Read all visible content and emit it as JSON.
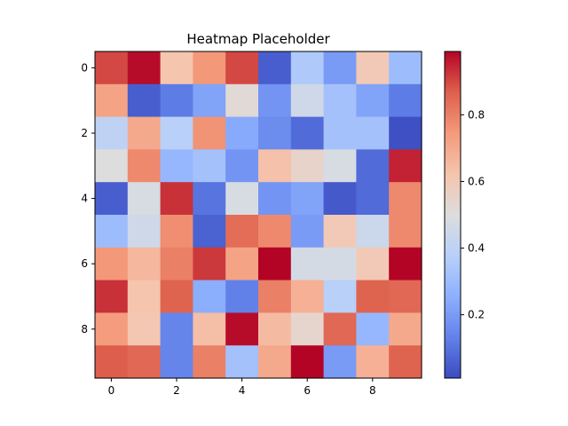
{
  "chart_data": {
    "type": "heatmap",
    "title": "Heatmap Placeholder",
    "xlabel": "",
    "ylabel": "",
    "colormap": "coolwarm",
    "rows": [
      0,
      1,
      2,
      3,
      4,
      5,
      6,
      7,
      8,
      9
    ],
    "cols": [
      0,
      1,
      2,
      3,
      4,
      5,
      6,
      7,
      8,
      9
    ],
    "x_ticks": [
      0,
      2,
      4,
      6,
      8
    ],
    "y_ticks": [
      0,
      2,
      4,
      6,
      8
    ],
    "color_range": [
      0.01,
      0.99
    ],
    "colorbar_ticks": [
      "0.2",
      "0.4",
      "0.6",
      "0.8"
    ],
    "colorbar_tick_values": [
      0.2,
      0.4,
      0.6,
      0.8
    ],
    "values": [
      [
        0.9,
        0.98,
        0.62,
        0.75,
        0.9,
        0.05,
        0.35,
        0.2,
        0.6,
        0.3
      ],
      [
        0.72,
        0.05,
        0.12,
        0.22,
        0.52,
        0.18,
        0.45,
        0.32,
        0.22,
        0.12
      ],
      [
        0.4,
        0.7,
        0.38,
        0.76,
        0.24,
        0.16,
        0.08,
        0.32,
        0.32,
        0.02
      ],
      [
        0.5,
        0.78,
        0.28,
        0.32,
        0.18,
        0.63,
        0.55,
        0.48,
        0.08,
        0.95
      ],
      [
        0.05,
        0.48,
        0.93,
        0.1,
        0.48,
        0.18,
        0.22,
        0.04,
        0.08,
        0.78
      ],
      [
        0.3,
        0.45,
        0.77,
        0.06,
        0.84,
        0.78,
        0.2,
        0.6,
        0.44,
        0.78
      ],
      [
        0.75,
        0.66,
        0.8,
        0.92,
        0.72,
        0.99,
        0.47,
        0.47,
        0.6,
        0.99
      ],
      [
        0.93,
        0.62,
        0.86,
        0.25,
        0.13,
        0.8,
        0.68,
        0.38,
        0.86,
        0.85
      ],
      [
        0.74,
        0.61,
        0.14,
        0.64,
        0.98,
        0.65,
        0.54,
        0.85,
        0.28,
        0.7
      ],
      [
        0.87,
        0.85,
        0.14,
        0.8,
        0.32,
        0.7,
        0.99,
        0.2,
        0.68,
        0.86
      ]
    ]
  }
}
